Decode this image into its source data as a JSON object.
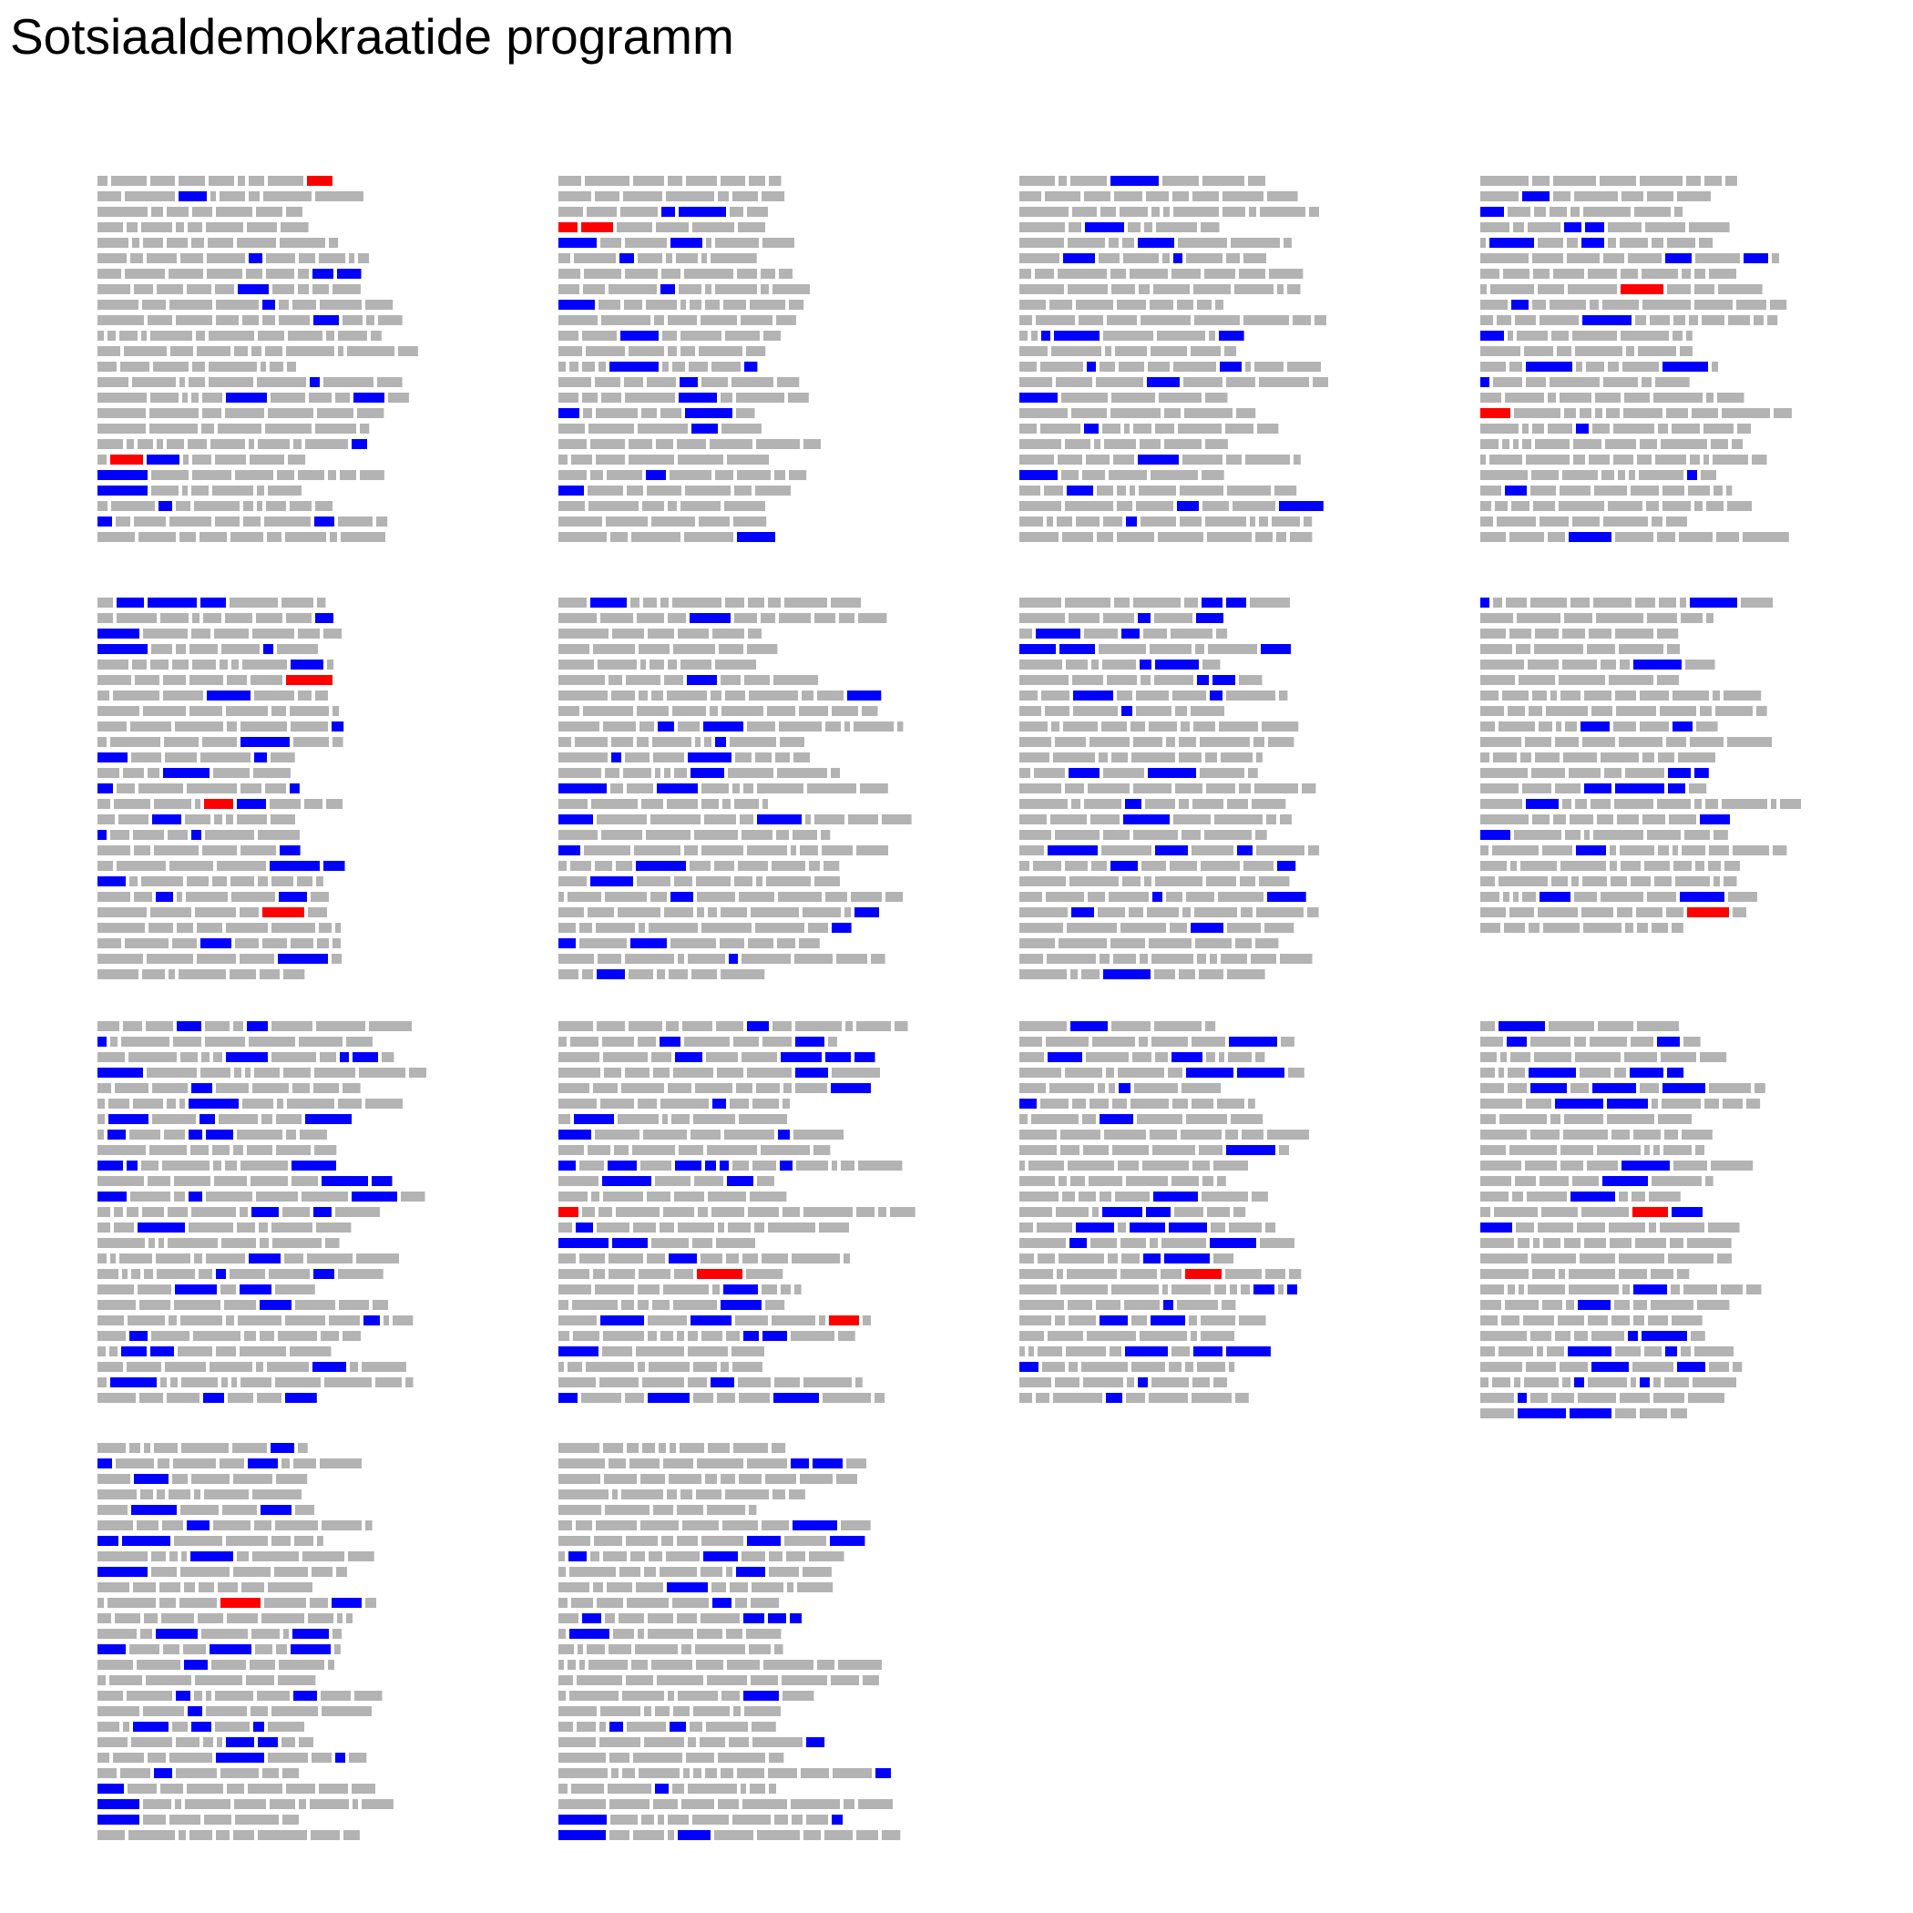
{
  "chart_data": {
    "type": "heatmap",
    "title": "Sotsiaaldemokraatide programm",
    "colors": {
      "background": "#ffffff",
      "word": "#b3b3b3",
      "keyword_blue": "#0000ff",
      "keyword_red": "#ff0000"
    },
    "pages": [
      {
        "page": 1,
        "rows": 24,
        "max_width": 0.82,
        "blue_words": 17,
        "red_words": 2
      },
      {
        "page": 2,
        "rows": 24,
        "max_width": 0.68,
        "blue_words": 18,
        "red_words": 2
      },
      {
        "page": 3,
        "rows": 24,
        "max_width": 0.8,
        "blue_words": 19,
        "red_words": 0
      },
      {
        "page": 4,
        "rows": 24,
        "max_width": 0.8,
        "blue_words": 18,
        "red_words": 2
      },
      {
        "page": 5,
        "rows": 25,
        "max_width": 0.64,
        "blue_words": 28,
        "red_words": 3
      },
      {
        "page": 6,
        "rows": 25,
        "max_width": 0.92,
        "blue_words": 24,
        "red_words": 0
      },
      {
        "page": 7,
        "rows": 25,
        "max_width": 0.78,
        "blue_words": 30,
        "red_words": 0
      },
      {
        "page": 8,
        "rows": 22,
        "max_width": 0.82,
        "blue_words": 16,
        "red_words": 1
      },
      {
        "page": 9,
        "rows": 25,
        "max_width": 0.85,
        "blue_words": 40,
        "red_words": 0
      },
      {
        "page": 10,
        "rows": 25,
        "max_width": 0.92,
        "blue_words": 36,
        "red_words": 3
      },
      {
        "page": 11,
        "rows": 25,
        "max_width": 0.74,
        "blue_words": 31,
        "red_words": 1
      },
      {
        "page": 12,
        "rows": 26,
        "max_width": 0.74,
        "blue_words": 29,
        "red_words": 1
      },
      {
        "page": 13,
        "rows": 26,
        "max_width": 0.76,
        "blue_words": 32,
        "red_words": 1
      },
      {
        "page": 14,
        "rows": 26,
        "max_width": 0.88,
        "blue_words": 25,
        "red_words": 0
      }
    ]
  }
}
